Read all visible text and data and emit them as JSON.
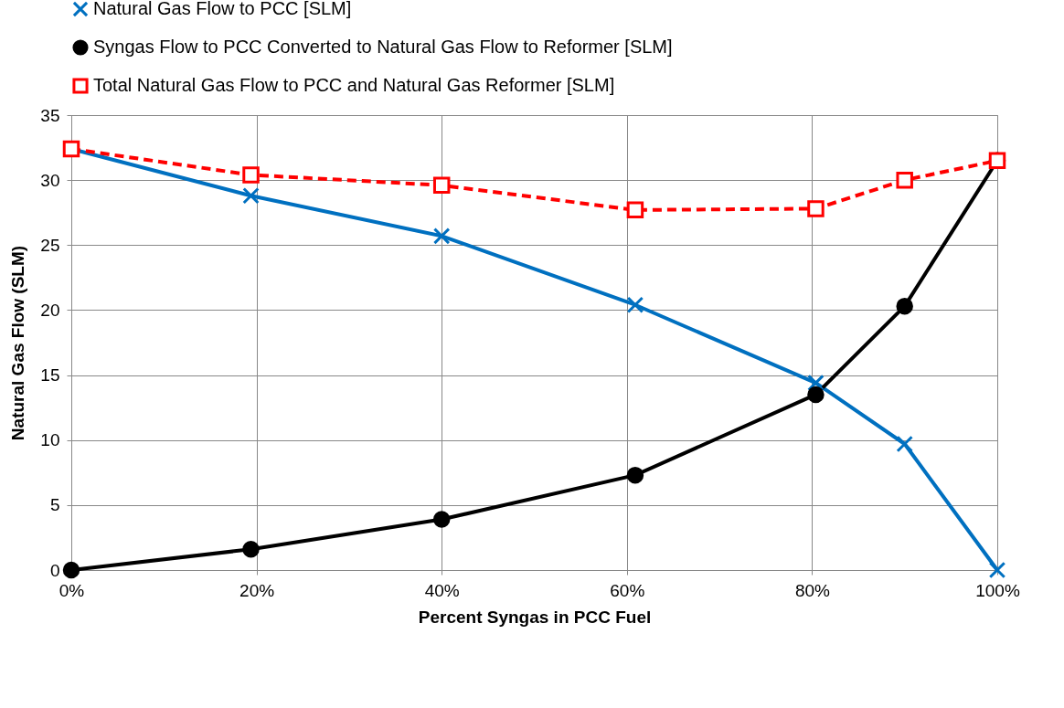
{
  "chart_data": {
    "type": "line",
    "xlabel": "Percent Syngas in PCC Fuel",
    "ylabel": "Natural Gas Flow (SLM)",
    "x": [
      0,
      19.4,
      40,
      60.9,
      80.4,
      90,
      100
    ],
    "series": [
      {
        "name": "Natural Gas Flow to PCC [SLM]",
        "color": "#0070c0",
        "marker": "cross",
        "line_style": "solid",
        "values": [
          32.4,
          28.8,
          25.7,
          20.4,
          14.4,
          9.7,
          0
        ]
      },
      {
        "name": "Syngas Flow to PCC Converted to Natural Gas Flow to Reformer [SLM]",
        "color": "#000000",
        "marker": "circle",
        "line_style": "solid",
        "values": [
          0,
          1.6,
          3.9,
          7.3,
          13.5,
          20.3,
          31.5
        ]
      },
      {
        "name": "Total Natural Gas Flow to PCC and Natural Gas Reformer [SLM]",
        "color": "#ff0000",
        "marker": "square",
        "line_style": "dashed",
        "values": [
          32.4,
          30.4,
          29.6,
          27.7,
          27.8,
          30.0,
          31.5
        ]
      }
    ],
    "xlim": [
      0,
      100
    ],
    "xticks": [
      {
        "value": 0,
        "label": "0%"
      },
      {
        "value": 20,
        "label": "20%"
      },
      {
        "value": 40,
        "label": "40%"
      },
      {
        "value": 60,
        "label": "60%"
      },
      {
        "value": 80,
        "label": "80%"
      },
      {
        "value": 100,
        "label": "100%"
      }
    ],
    "ylim": [
      0,
      35
    ],
    "yticks": [
      0,
      5,
      10,
      15,
      20,
      25,
      30,
      35
    ],
    "grid": true,
    "legend": "top"
  }
}
